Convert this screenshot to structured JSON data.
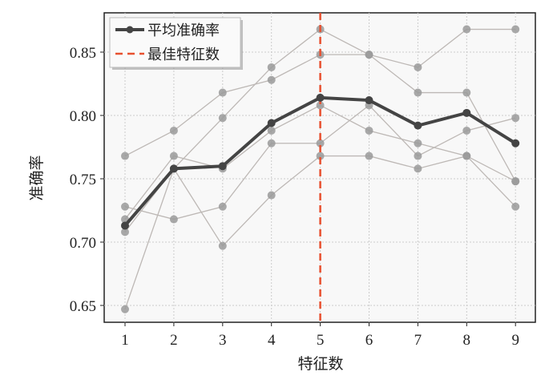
{
  "chart_data": {
    "type": "line",
    "title": "",
    "xlabel": "特征数",
    "ylabel": "准确率",
    "x": [
      1,
      2,
      3,
      4,
      5,
      6,
      7,
      8,
      9
    ],
    "xlim": [
      0.6,
      9.4
    ],
    "ylim": [
      0.635,
      0.88
    ],
    "xticks": [
      "1",
      "2",
      "3",
      "4",
      "5",
      "6",
      "7",
      "8",
      "9"
    ],
    "yticks": [
      "0.65",
      "0.70",
      "0.75",
      "0.80",
      "0.85"
    ],
    "ytick_values": [
      0.65,
      0.7,
      0.75,
      0.8,
      0.85
    ],
    "grid": true,
    "legend_position": "top-left",
    "mean_series": {
      "name": "平均准确率",
      "color": "#444444",
      "values": [
        0.713,
        0.758,
        0.76,
        0.794,
        0.814,
        0.812,
        0.792,
        0.802,
        0.778
      ]
    },
    "fold_series": [
      {
        "values": [
          0.768,
          0.788,
          0.818,
          0.828,
          0.848,
          0.848,
          0.838,
          0.868,
          0.868
        ]
      },
      {
        "values": [
          0.647,
          0.758,
          0.798,
          0.838,
          0.868,
          0.848,
          0.818,
          0.818,
          0.748
        ]
      },
      {
        "values": [
          0.718,
          0.768,
          0.758,
          0.788,
          0.808,
          0.788,
          0.778,
          0.768,
          0.748
        ]
      },
      {
        "values": [
          0.728,
          0.718,
          0.728,
          0.778,
          0.778,
          0.808,
          0.768,
          0.788,
          0.798
        ]
      },
      {
        "values": [
          0.708,
          0.758,
          0.697,
          0.737,
          0.768,
          0.768,
          0.758,
          0.768,
          0.728
        ]
      }
    ],
    "best_line": {
      "name": "最佳特征数",
      "x": 5,
      "color": "#e8502f"
    },
    "fold_color": "#9a9a9a"
  }
}
